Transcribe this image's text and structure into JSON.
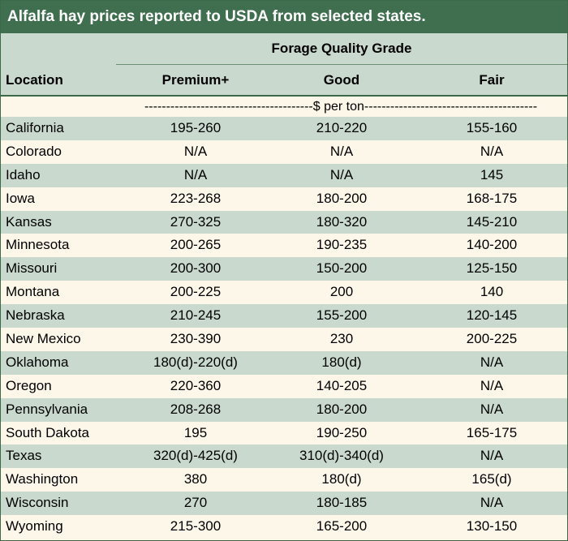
{
  "title": "Alfalfa hay prices reported to USDA from selected states.",
  "header": {
    "group": "Forage Quality Grade",
    "location": "Location",
    "columns": [
      "Premium+",
      "Good",
      "Fair"
    ]
  },
  "units": "---------------------------------------$ per ton----------------------------------------",
  "colors": {
    "title_bg": "#3f6f4f",
    "band": "#c9d9ce",
    "paper": "#fdf7ea"
  },
  "rows": [
    {
      "location": "California",
      "premium": "195-260",
      "good": "210-220",
      "fair": "155-160"
    },
    {
      "location": "Colorado",
      "premium": "N/A",
      "good": "N/A",
      "fair": "N/A"
    },
    {
      "location": "Idaho",
      "premium": "N/A",
      "good": "N/A",
      "fair": "145"
    },
    {
      "location": "Iowa",
      "premium": "223-268",
      "good": "180-200",
      "fair": "168-175"
    },
    {
      "location": "Kansas",
      "premium": "270-325",
      "good": "180-320",
      "fair": "145-210"
    },
    {
      "location": "Minnesota",
      "premium": "200-265",
      "good": "190-235",
      "fair": "140-200"
    },
    {
      "location": "Missouri",
      "premium": "200-300",
      "good": "150-200",
      "fair": "125-150"
    },
    {
      "location": "Montana",
      "premium": "200-225",
      "good": "200",
      "fair": "140"
    },
    {
      "location": "Nebraska",
      "premium": "210-245",
      "good": "155-200",
      "fair": "120-145"
    },
    {
      "location": "New Mexico",
      "premium": "230-390",
      "good": "230",
      "fair": "200-225"
    },
    {
      "location": "Oklahoma",
      "premium": "180(d)-220(d)",
      "good": "180(d)",
      "fair": "N/A"
    },
    {
      "location": "Oregon",
      "premium": "220-360",
      "good": "140-205",
      "fair": "N/A"
    },
    {
      "location": "Pennsylvania",
      "premium": "208-268",
      "good": "180-200",
      "fair": "N/A"
    },
    {
      "location": "South Dakota",
      "premium": "195",
      "good": "190-250",
      "fair": "165-175"
    },
    {
      "location": "Texas",
      "premium": "320(d)-425(d)",
      "good": "310(d)-340(d)",
      "fair": "N/A"
    },
    {
      "location": "Washington",
      "premium": "380",
      "good": "180(d)",
      "fair": "165(d)"
    },
    {
      "location": "Wisconsin",
      "premium": "270",
      "good": "180-185",
      "fair": "N/A"
    },
    {
      "location": "Wyoming",
      "premium": "215-300",
      "good": "165-200",
      "fair": "130-150"
    }
  ]
}
